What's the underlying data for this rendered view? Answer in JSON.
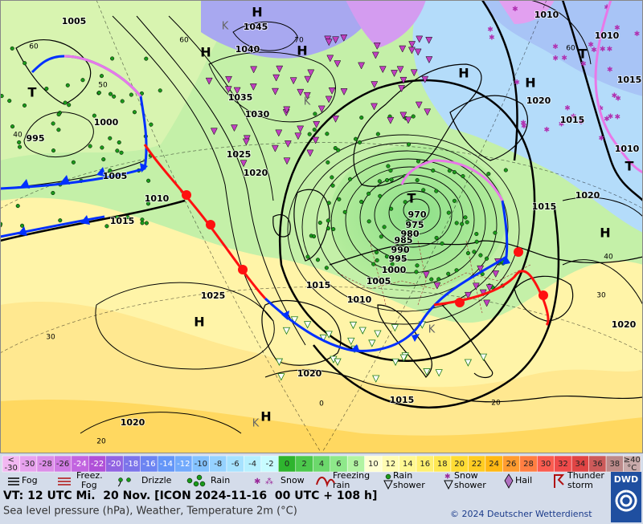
{
  "map": {
    "isobar_labels": [
      "1005",
      "1045",
      "1040",
      "1010",
      "1010",
      "1015",
      "1020",
      "1015",
      "1010",
      "1020",
      "1015",
      "1035",
      "1030",
      "1025",
      "1020",
      "1000",
      "995",
      "1005",
      "1010",
      "1015",
      "1025",
      "1015",
      "1010",
      "1005",
      "1000",
      "995",
      "990",
      "985",
      "980",
      "975",
      "970",
      "1020",
      "1015",
      "1020",
      "1020"
    ],
    "pressure_centers": [
      "H",
      "H",
      "H",
      "H",
      "H",
      "T",
      "T",
      "T",
      "T",
      "K",
      "K",
      "K",
      "K",
      "H",
      "H",
      "H"
    ],
    "grid_labels": [
      "60",
      "60",
      "70",
      "50",
      "40",
      "30",
      "20",
      "40",
      "30",
      "60",
      "0",
      "20"
    ]
  },
  "scale": {
    "cells": [
      {
        "text": [
          "<",
          "-30"
        ],
        "color": "#f2b8f2"
      },
      {
        "text": [
          "-30"
        ],
        "color": "#e8a2ee"
      },
      {
        "text": [
          "-28"
        ],
        "color": "#dc8ee8"
      },
      {
        "text": [
          "-26"
        ],
        "color": "#d07ae4"
      },
      {
        "text": [
          "-24"
        ],
        "color": "#c264e0"
      },
      {
        "text": [
          "-22"
        ],
        "color": "#b050d8"
      },
      {
        "text": [
          "-20"
        ],
        "color": "#9264e2"
      },
      {
        "text": [
          "-18"
        ],
        "color": "#7c74ea"
      },
      {
        "text": [
          "-16"
        ],
        "color": "#6c84f2"
      },
      {
        "text": [
          "-14"
        ],
        "color": "#6496f8"
      },
      {
        "text": [
          "-12"
        ],
        "color": "#72aafc"
      },
      {
        "text": [
          "-10"
        ],
        "color": "#84c2ff"
      },
      {
        "text": [
          "-8"
        ],
        "color": "#96d2ff"
      },
      {
        "text": [
          "-6"
        ],
        "color": "#a6e2ff"
      },
      {
        "text": [
          "-4"
        ],
        "color": "#b6f0ff"
      },
      {
        "text": [
          "-2"
        ],
        "color": "#c8fcff"
      },
      {
        "text": [
          "0"
        ],
        "color": "#2eb42e"
      },
      {
        "text": [
          "2"
        ],
        "color": "#4cc84c"
      },
      {
        "text": [
          "4"
        ],
        "color": "#6cd86c"
      },
      {
        "text": [
          "6"
        ],
        "color": "#8ee88a"
      },
      {
        "text": [
          "8"
        ],
        "color": "#b2f4a2"
      },
      {
        "text": [
          "10"
        ],
        "color": "#ffffd2"
      },
      {
        "text": [
          "12"
        ],
        "color": "#fffcb2"
      },
      {
        "text": [
          "14"
        ],
        "color": "#fff892"
      },
      {
        "text": [
          "16"
        ],
        "color": "#fff070"
      },
      {
        "text": [
          "18"
        ],
        "color": "#ffe852"
      },
      {
        "text": [
          "20"
        ],
        "color": "#ffdc34"
      },
      {
        "text": [
          "22"
        ],
        "color": "#ffcc22"
      },
      {
        "text": [
          "24"
        ],
        "color": "#ffb814"
      },
      {
        "text": [
          "26"
        ],
        "color": "#ff9c30"
      },
      {
        "text": [
          "28"
        ],
        "color": "#ff7e42"
      },
      {
        "text": [
          "30"
        ],
        "color": "#fa5c50"
      },
      {
        "text": [
          "32"
        ],
        "color": "#f04a4a"
      },
      {
        "text": [
          "34"
        ],
        "color": "#e04444"
      },
      {
        "text": [
          "36"
        ],
        "color": "#cc5a5a"
      },
      {
        "text": [
          "38"
        ],
        "color": "#bc8a8a"
      },
      {
        "text": [
          "≥40",
          "°C"
        ],
        "color": "#c8aaaa"
      }
    ]
  },
  "legend": [
    [
      "Fog"
    ],
    [
      "Freez.",
      "Fog"
    ],
    [
      "Drizzle"
    ],
    [
      "Rain"
    ],
    [
      "Snow"
    ],
    [
      "Freezing",
      "rain"
    ],
    [
      "Rain",
      "shower"
    ],
    [
      "Snow",
      "shower"
    ],
    [
      "Hail"
    ],
    [
      "Thunder",
      "storm"
    ]
  ],
  "footer": {
    "valid_time": "VT: 12 UTC Mi.  20 Nov. [ICON 2024-11-16  00 UTC + 108 h]",
    "subtitle": "Sea level pressure (hPa), Weather, Temperature 2m (°C)",
    "copyright": "© 2024 Deutscher Wetterdienst",
    "logo": "DWD"
  }
}
